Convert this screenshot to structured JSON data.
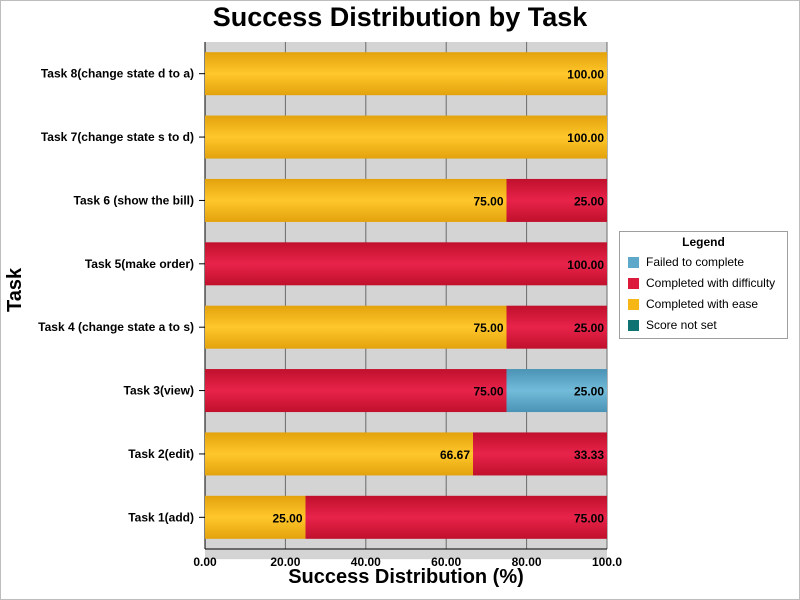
{
  "chart_data": {
    "type": "bar",
    "orientation": "horizontal",
    "stacked": true,
    "title": "Success Distribution by Task",
    "xlabel": "Success Distribution (%)",
    "ylabel": "Task",
    "xlim": [
      0,
      100
    ],
    "x_ticks": [
      "0.00",
      "20.00",
      "40.00",
      "60.00",
      "80.00",
      "100.0"
    ],
    "grid": true,
    "legend_placement": "right",
    "legend_title": "Legend",
    "categories": [
      "Task 8(change state d to a)",
      "Task 7(change state s to d)",
      "Task 6 (show the bill)",
      "Task 5(make order)",
      "Task 4 (change state a to s)",
      "Task 3(view)",
      "Task 2(edit)",
      "Task 1(add)"
    ],
    "series": [
      {
        "name": "Completed with ease",
        "color": "#f5b616",
        "values": [
          100,
          100,
          75,
          0,
          75,
          0,
          66.67,
          25
        ],
        "labels": [
          "100.00",
          "100.00",
          "75.00",
          "",
          "75.00",
          "",
          "66.67",
          "25.00"
        ]
      },
      {
        "name": "Completed with difficulty",
        "color": "#dc1a3c",
        "values": [
          0,
          0,
          25,
          100,
          25,
          75,
          33.33,
          75
        ],
        "labels": [
          "",
          "",
          "25.00",
          "100.00",
          "25.00",
          "75.00",
          "33.33",
          "75.00"
        ]
      },
      {
        "name": "Failed to complete",
        "color": "#5ea8c9",
        "values": [
          0,
          0,
          0,
          0,
          0,
          25,
          0,
          0
        ],
        "labels": [
          "",
          "",
          "",
          "",
          "",
          "25.00",
          "",
          ""
        ]
      },
      {
        "name": "Score not set",
        "color": "#0e7272",
        "values": [
          0,
          0,
          0,
          0,
          0,
          0,
          0,
          0
        ],
        "labels": [
          "",
          "",
          "",
          "",
          "",
          "",
          "",
          ""
        ]
      }
    ],
    "legend_order": [
      "Failed to complete",
      "Completed with difficulty",
      "Completed with ease",
      "Score not set"
    ]
  }
}
